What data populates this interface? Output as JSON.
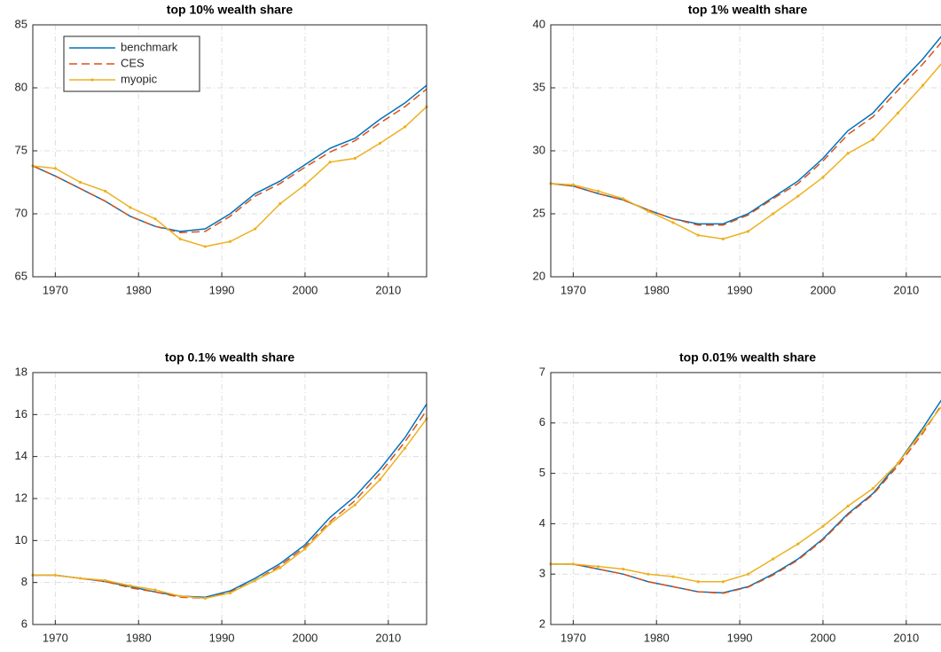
{
  "chart_data": [
    {
      "type": "line",
      "title": "top 10% wealth share",
      "x": [
        1967.3,
        1970,
        1973,
        1976,
        1979,
        1982,
        1985,
        1988,
        1991,
        1994,
        1997,
        2000,
        2003,
        2006,
        2009,
        2012,
        2014.6
      ],
      "xlim": [
        1967.3,
        2014.6
      ],
      "xticks": [
        1970,
        1980,
        1990,
        2000,
        2010
      ],
      "ylim": [
        65,
        85
      ],
      "yticks": [
        65,
        70,
        75,
        80,
        85
      ],
      "grid": true,
      "legend": "upper left",
      "series": [
        {
          "name": "benchmark",
          "color": "#0072bd",
          "style": "solid",
          "values": [
            73.8,
            73.0,
            72.0,
            71.0,
            69.8,
            69.0,
            68.6,
            68.8,
            70.0,
            71.6,
            72.6,
            73.9,
            75.2,
            76.0,
            77.5,
            78.8,
            80.2
          ]
        },
        {
          "name": "CES",
          "color": "#d95319",
          "style": "dashed",
          "values": [
            73.8,
            73.0,
            72.0,
            71.0,
            69.8,
            69.0,
            68.5,
            68.6,
            69.8,
            71.4,
            72.4,
            73.7,
            74.9,
            75.8,
            77.2,
            78.5,
            79.9
          ]
        },
        {
          "name": "myopic",
          "color": "#edb120",
          "style": "solid",
          "marker": "dot",
          "values": [
            73.8,
            73.6,
            72.5,
            71.8,
            70.5,
            69.6,
            68.0,
            67.4,
            67.8,
            68.8,
            70.8,
            72.3,
            74.1,
            74.4,
            75.6,
            76.9,
            78.5
          ]
        }
      ]
    },
    {
      "type": "line",
      "title": "top 1% wealth share",
      "x": [
        1967.3,
        1970,
        1973,
        1976,
        1979,
        1982,
        1985,
        1988,
        1991,
        1994,
        1997,
        2000,
        2003,
        2006,
        2009,
        2012,
        2014.6
      ],
      "xlim": [
        1967.3,
        2014.6
      ],
      "xticks": [
        1970,
        1980,
        1990,
        2000,
        2010
      ],
      "ylim": [
        20,
        40
      ],
      "yticks": [
        20,
        25,
        30,
        35,
        40
      ],
      "grid": true,
      "series": [
        {
          "color": "#0072bd",
          "style": "solid",
          "values": [
            27.4,
            27.2,
            26.6,
            26.1,
            25.3,
            24.6,
            24.2,
            24.2,
            25.0,
            26.3,
            27.6,
            29.4,
            31.6,
            33.0,
            35.2,
            37.3,
            39.4
          ]
        },
        {
          "color": "#d95319",
          "style": "dashed",
          "values": [
            27.4,
            27.2,
            26.6,
            26.1,
            25.3,
            24.6,
            24.1,
            24.1,
            24.9,
            26.2,
            27.4,
            29.2,
            31.3,
            32.7,
            34.8,
            36.9,
            38.9
          ]
        },
        {
          "color": "#edb120",
          "style": "solid",
          "marker": "dot",
          "values": [
            27.4,
            27.3,
            26.8,
            26.2,
            25.2,
            24.3,
            23.3,
            23.0,
            23.6,
            25.0,
            26.4,
            27.9,
            29.8,
            30.9,
            33.0,
            35.2,
            37.2
          ]
        }
      ]
    },
    {
      "type": "line",
      "title": "top 0.1% wealth share",
      "x": [
        1967.3,
        1970,
        1973,
        1976,
        1979,
        1982,
        1985,
        1988,
        1991,
        1994,
        1997,
        2000,
        2003,
        2006,
        2009,
        2012,
        2014.6
      ],
      "xlim": [
        1967.3,
        2014.6
      ],
      "xticks": [
        1970,
        1980,
        1990,
        2000,
        2010
      ],
      "ylim": [
        6,
        18
      ],
      "yticks": [
        6,
        8,
        10,
        12,
        14,
        16,
        18
      ],
      "grid": true,
      "series": [
        {
          "color": "#0072bd",
          "style": "solid",
          "values": [
            8.35,
            8.35,
            8.2,
            8.05,
            7.8,
            7.55,
            7.35,
            7.3,
            7.6,
            8.2,
            8.9,
            9.8,
            11.1,
            12.1,
            13.4,
            14.9,
            16.5
          ]
        },
        {
          "color": "#d95319",
          "style": "dashed",
          "values": [
            8.35,
            8.35,
            8.2,
            8.05,
            7.75,
            7.55,
            7.3,
            7.25,
            7.55,
            8.1,
            8.8,
            9.7,
            10.9,
            11.9,
            13.2,
            14.7,
            16.2
          ]
        },
        {
          "color": "#edb120",
          "style": "solid",
          "marker": "dot",
          "values": [
            8.35,
            8.35,
            8.2,
            8.1,
            7.85,
            7.65,
            7.35,
            7.25,
            7.5,
            8.1,
            8.7,
            9.6,
            10.8,
            11.7,
            12.9,
            14.4,
            15.8
          ]
        }
      ]
    },
    {
      "type": "line",
      "title": "top 0.01% wealth share",
      "x": [
        1967.3,
        1970,
        1973,
        1976,
        1979,
        1982,
        1985,
        1988,
        1991,
        1994,
        1997,
        2000,
        2003,
        2006,
        2009,
        2012,
        2014.6
      ],
      "xlim": [
        1967.3,
        2014.6
      ],
      "xticks": [
        1970,
        1980,
        1990,
        2000,
        2010
      ],
      "ylim": [
        2,
        7
      ],
      "yticks": [
        2,
        3,
        4,
        5,
        6,
        7
      ],
      "grid": true,
      "series": [
        {
          "color": "#0072bd",
          "style": "solid",
          "values": [
            3.2,
            3.2,
            3.1,
            3.0,
            2.85,
            2.75,
            2.65,
            2.63,
            2.75,
            3.0,
            3.3,
            3.7,
            4.2,
            4.6,
            5.2,
            5.9,
            6.55
          ]
        },
        {
          "color": "#d95319",
          "style": "dashed",
          "values": [
            3.2,
            3.2,
            3.1,
            3.0,
            2.85,
            2.75,
            2.65,
            2.62,
            2.74,
            2.98,
            3.28,
            3.68,
            4.18,
            4.58,
            5.15,
            5.8,
            6.45
          ]
        },
        {
          "color": "#edb120",
          "style": "solid",
          "marker": "dot",
          "values": [
            3.2,
            3.2,
            3.15,
            3.1,
            3.0,
            2.95,
            2.85,
            2.85,
            3.0,
            3.3,
            3.6,
            3.95,
            4.35,
            4.7,
            5.2,
            5.85,
            6.4
          ]
        }
      ]
    }
  ]
}
